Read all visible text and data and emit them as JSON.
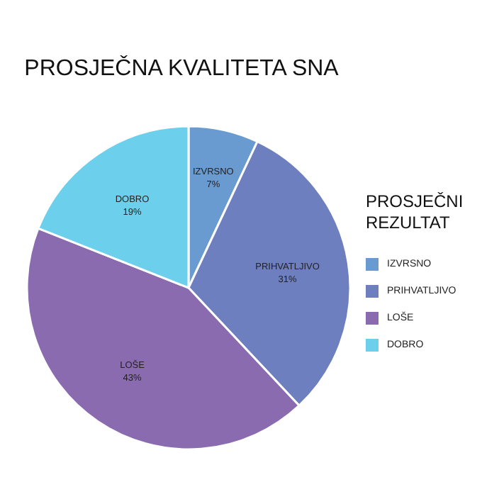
{
  "chart_data": {
    "type": "pie",
    "title": "PROSJEČNA KVALITETA SNA",
    "legend_title": "PROSJEČNI REZULTAT",
    "categories": [
      "IZVRSNO",
      "PRIHVATLJIVO",
      "LOŠE",
      "DOBRO"
    ],
    "values": [
      7,
      31,
      43,
      19
    ],
    "colors": [
      "#6a9bd0",
      "#6e7fc0",
      "#8a6bb0",
      "#6ccfec"
    ],
    "value_labels": [
      "7%",
      "31%",
      "43%",
      "19%"
    ],
    "legend": "right"
  }
}
